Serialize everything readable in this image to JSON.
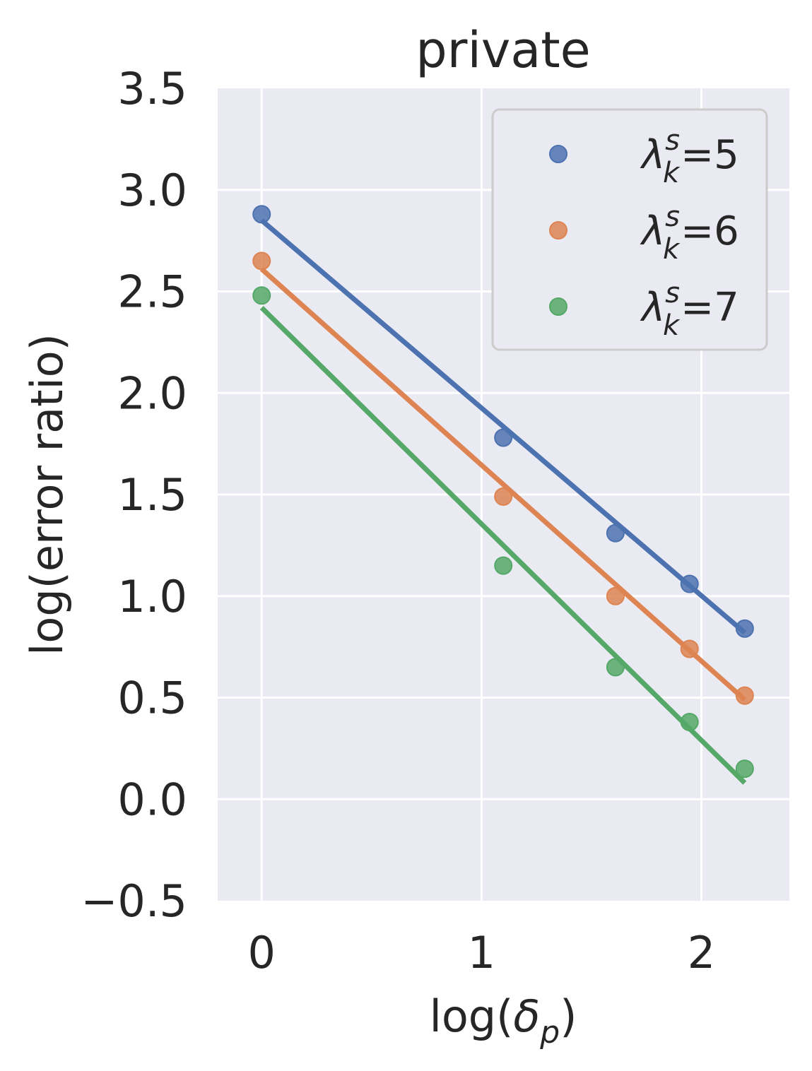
{
  "chart_data": {
    "type": "scatter",
    "title": "private",
    "xlabel": "log(δp)",
    "xlabel_parts": {
      "prefix": "log(",
      "symbol": "δ",
      "subscript": "p",
      "suffix": ")"
    },
    "ylabel": "log(error ratio)",
    "xlim": [
      -0.2,
      2.4
    ],
    "ylim": [
      -0.5,
      3.5
    ],
    "xticks": [
      0,
      1,
      2
    ],
    "xtick_labels": [
      "0",
      "1",
      "2"
    ],
    "yticks": [
      -0.5,
      0.0,
      0.5,
      1.0,
      1.5,
      2.0,
      2.5,
      3.0,
      3.5
    ],
    "ytick_labels": [
      "−0.5",
      "0.0",
      "0.5",
      "1.0",
      "1.5",
      "2.0",
      "2.5",
      "3.0",
      "3.5"
    ],
    "grid": true,
    "legend_position": "top-right",
    "x": [
      0.0,
      1.099,
      1.609,
      1.946,
      2.197
    ],
    "series": [
      {
        "name": "λks=5",
        "legend": {
          "symbol": "λ",
          "sup": "s",
          "sub": "k",
          "value": "=5"
        },
        "color": "#4C72B0",
        "values": [
          2.88,
          1.78,
          1.31,
          1.06,
          0.84
        ],
        "fit_line": {
          "x": [
            0.0,
            2.197
          ],
          "y": [
            2.85,
            0.82
          ]
        }
      },
      {
        "name": "λks=6",
        "legend": {
          "symbol": "λ",
          "sup": "s",
          "sub": "k",
          "value": "=6"
        },
        "color": "#DD8452",
        "values": [
          2.65,
          1.49,
          1.0,
          0.74,
          0.51
        ],
        "fit_line": {
          "x": [
            0.0,
            2.197
          ],
          "y": [
            2.61,
            0.49
          ]
        }
      },
      {
        "name": "λks=7",
        "legend": {
          "symbol": "λ",
          "sup": "s",
          "sub": "k",
          "value": "=7"
        },
        "color": "#55A868",
        "values": [
          2.48,
          1.15,
          0.65,
          0.38,
          0.15
        ],
        "fit_line": {
          "x": [
            0.0,
            2.197
          ],
          "y": [
            2.42,
            0.08
          ]
        }
      }
    ]
  },
  "colors": {
    "plot_background": "#EAEAF2",
    "grid": "#FFFFFF",
    "legend_background": "#EAEAF2",
    "legend_border": "#CCCCCC",
    "text": "#262626"
  }
}
